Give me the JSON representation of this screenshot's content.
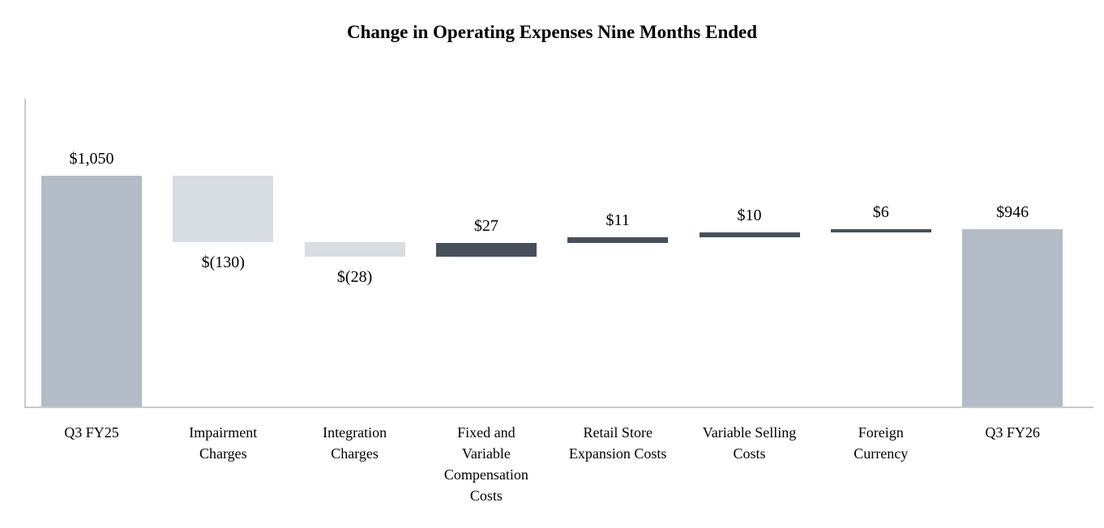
{
  "chart_data": {
    "type": "waterfall",
    "title": "Change in Operating Expenses Nine Months Ended",
    "categories": [
      "Q3 FY25",
      "Impairment Charges",
      "Integration Charges",
      "Fixed and Variable Compensation Costs",
      "Retail Store Expansion Costs",
      "Variable Selling Costs",
      "Foreign Currency",
      "Q3 FY26"
    ],
    "category_label_lines": [
      [
        "Q3 FY25"
      ],
      [
        "Impairment",
        "Charges"
      ],
      [
        "Integration",
        "Charges"
      ],
      [
        "Fixed and",
        "Variable",
        "Compensation",
        "Costs"
      ],
      [
        "Retail Store",
        "Expansion Costs"
      ],
      [
        "Variable Selling",
        "Costs"
      ],
      [
        "Foreign",
        "Currency"
      ],
      [
        "Q3 FY26"
      ]
    ],
    "values": [
      1050,
      -130,
      -28,
      27,
      11,
      10,
      6,
      946
    ],
    "value_labels": [
      "$1,050",
      "$(130)",
      "$(28)",
      "$27",
      "$11",
      "$10",
      "$6",
      "$946"
    ],
    "bar_types": [
      "total",
      "decrease",
      "decrease",
      "increase",
      "increase",
      "increase",
      "increase",
      "total"
    ],
    "running_totals": [
      1050,
      920,
      892,
      919,
      930,
      940,
      946,
      946
    ],
    "axis_range": [
      600,
      1200
    ],
    "grid": false,
    "legend": false,
    "colors": {
      "total": "#b3bcc7",
      "decrease": "#d8dde3",
      "increase": "#47505b",
      "axis": "#c9c9c9",
      "text": "#000000"
    }
  }
}
